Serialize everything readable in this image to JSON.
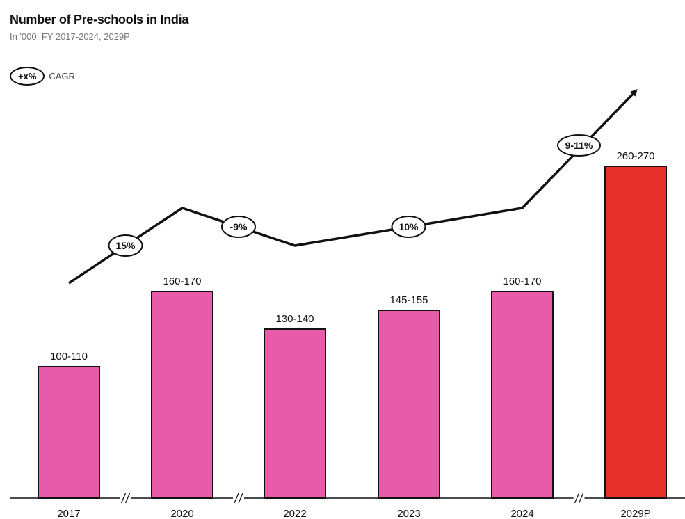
{
  "chart_data": {
    "type": "bar",
    "title": "Number of Pre-schools in India",
    "subtitle": "In '000, FY 2017-2024, 2029P",
    "categories": [
      "2017",
      "2020",
      "2022",
      "2023",
      "2024",
      "2029P"
    ],
    "series": [
      {
        "values": [
          105,
          165,
          135,
          150,
          165,
          265
        ],
        "labels": [
          "100-110",
          "160-170",
          "130-140",
          "145-155",
          "160-170",
          "260-270"
        ]
      }
    ],
    "axis_breaks_after": [
      "2017",
      "2020",
      "2024"
    ],
    "ylim": [
      0,
      300
    ],
    "colors": {
      "historical": "#e85aaa",
      "projected": "#e8302a",
      "stroke": "#111111"
    },
    "legend": {
      "pill": "+x%",
      "text": "CAGR",
      "placement": "top-left"
    },
    "cagr": [
      {
        "label": "15%",
        "from": "2017",
        "to": "2020"
      },
      {
        "label": "-9%",
        "from": "2020",
        "to": "2022"
      },
      {
        "label": "10%",
        "from": "2022",
        "to": "2024"
      },
      {
        "label": "9-11%",
        "from": "2024",
        "to": "2029P"
      }
    ]
  }
}
